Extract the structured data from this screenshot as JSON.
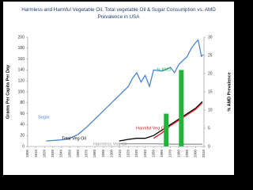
{
  "chart_data": {
    "type": "line",
    "title": "Harmless and Harmful Vegetable Oil, Total vegetable Oil & Sugar Consumption vs. AMD Prevalence in  USA",
    "y_label": "Grams Per Capita Per Day",
    "y2_label": "% AMD Prevalence",
    "xlim": [
      1800,
      2010
    ],
    "xticks": [
      1800,
      1810,
      1820,
      1830,
      1840,
      1850,
      1860,
      1870,
      1880,
      1890,
      1900,
      1910,
      1920,
      1930,
      1940,
      1950,
      1960,
      1970,
      1980,
      1990,
      2000,
      2010
    ],
    "ylim": [
      0,
      200
    ],
    "yticks": [
      0,
      20,
      40,
      60,
      80,
      100,
      120,
      140,
      160,
      180,
      200
    ],
    "y2lim": [
      0,
      30
    ],
    "y2ticks": [
      0,
      5,
      10,
      15,
      20,
      25,
      30
    ],
    "series": [
      {
        "name": "Sugar",
        "color": "#4a86d0",
        "x": [
          1822,
          1840,
          1850,
          1860,
          1870,
          1880,
          1890,
          1900,
          1910,
          1920,
          1925,
          1930,
          1935,
          1940,
          1945,
          1950,
          1960,
          1970,
          1975,
          1980,
          1990,
          1995,
          2000,
          2003,
          2005,
          2007,
          2009
        ],
        "values": [
          10,
          12,
          15,
          22,
          35,
          50,
          65,
          80,
          95,
          110,
          125,
          135,
          118,
          130,
          110,
          140,
          138,
          145,
          135,
          150,
          165,
          180,
          190,
          195,
          180,
          165,
          168
        ]
      },
      {
        "name": "Total Veg Oil",
        "color": "#000000",
        "x": [
          1909,
          1920,
          1930,
          1940,
          1950,
          1960,
          1970,
          1980,
          1990,
          2000,
          2008
        ],
        "values": [
          10,
          13,
          15,
          15,
          20,
          30,
          40,
          50,
          60,
          70,
          82
        ]
      },
      {
        "name": "Harmful Veg Oil",
        "color": "#e02020",
        "x": [
          1950,
          1960,
          1970,
          1980,
          1990,
          2000,
          2008
        ],
        "values": [
          15,
          25,
          38,
          48,
          58,
          68,
          80
        ]
      },
      {
        "name": "Harmless Veg Oil",
        "color": "#999999",
        "x": [
          1909,
          1950,
          1980,
          2008
        ],
        "values": [
          5,
          5,
          4,
          4
        ]
      },
      {
        "name": "% AMD",
        "color": "#22b33a",
        "axis": "y2",
        "type": "bar",
        "x": [
          1965,
          1983
        ],
        "values": [
          9,
          21
        ]
      }
    ]
  }
}
